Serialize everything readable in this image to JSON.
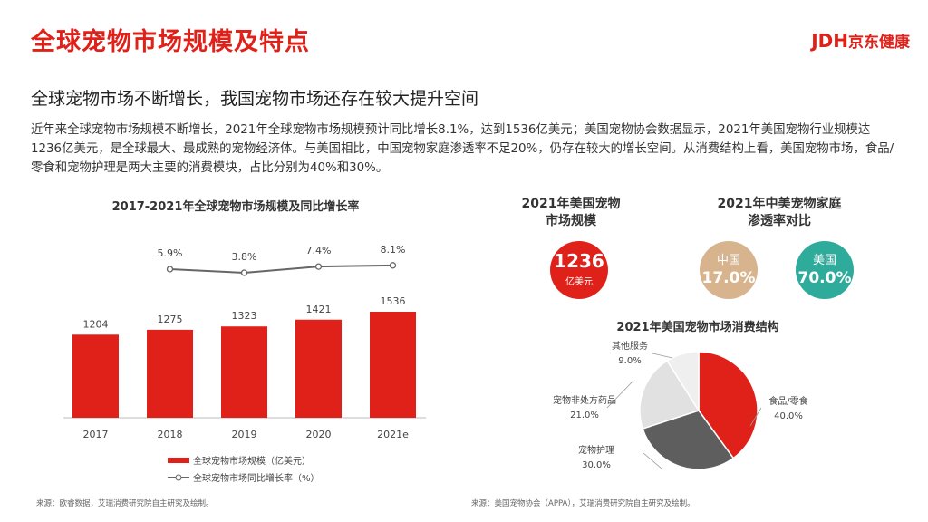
{
  "header": {
    "title": "全球宠物市场规模及特点",
    "logo_text": "JDH",
    "logo_cn": "京东健康"
  },
  "subtitle": "全球宠物市场不断增长，我国宠物市场还存在较大提升空间",
  "paragraph": "近年来全球宠物市场规模不断增长，2021年全球宠物市场规模预计同比增长8.1%，达到1536亿美元；美国宠物协会数据显示，2021年美国宠物行业规模达1236亿美元，是全球最大、最成熟的宠物经济体。与美国相比，中国宠物家庭渗透率不足20%，仍存在较大的增长空间。从消费结构上看，美国宠物市场，食品/零食和宠物护理是两大主要的消费模块，占比分别为40%和30%。",
  "us_market": {
    "title_line1": "2021年美国宠物",
    "title_line2": "市场规模",
    "value": "1236",
    "unit": "亿美元"
  },
  "penetration": {
    "title_line1": "2021年中美宠物家庭",
    "title_line2": "渗透率对比",
    "china_label": "中国",
    "china_value": "17.0%",
    "us_label": "美国",
    "us_value": "70.0%"
  },
  "sources": {
    "left": "来源：欧睿数据，艾瑞消费研究院自主研究及绘制。",
    "right": "来源：美国宠物协会（APPA），艾瑞消费研究院自主研究及绘制。"
  },
  "colors": {
    "red": "#e0211a",
    "tan": "#d8b48e",
    "teal": "#2fab9c",
    "dark": "#5e5e5e",
    "light": "#e1e1e1",
    "lighter": "#efefef"
  },
  "chart_data": [
    {
      "type": "bar",
      "title": "2017-2021年全球宠物市场规模及同比增长率",
      "categories": [
        "2017",
        "2018",
        "2019",
        "2020",
        "2021e"
      ],
      "series": [
        {
          "name": "全球宠物市场规模（亿美元）",
          "type": "bar",
          "values": [
            1204,
            1275,
            1323,
            1421,
            1536
          ],
          "labels": [
            "1204",
            "1275",
            "1323",
            "1421",
            "1536"
          ]
        },
        {
          "name": "全球宠物市场同比增长率（%）",
          "type": "line",
          "values": [
            null,
            5.9,
            3.8,
            7.4,
            8.1
          ],
          "labels": [
            "",
            "5.9%",
            "3.8%",
            "7.4%",
            "8.1%"
          ]
        }
      ]
    },
    {
      "type": "pie",
      "title": "2021年美国宠物市场消费结构",
      "slices": [
        {
          "label": "食品/零食",
          "value": 40.0,
          "text": "40.0%",
          "color": "#e0211a"
        },
        {
          "label": "宠物护理",
          "value": 30.0,
          "text": "30.0%",
          "color": "#5e5e5e"
        },
        {
          "label": "宠物非处方药品",
          "value": 21.0,
          "text": "21.0%",
          "color": "#e1e1e1"
        },
        {
          "label": "其他服务",
          "value": 9.0,
          "text": "9.0%",
          "color": "#efefef"
        }
      ]
    }
  ]
}
